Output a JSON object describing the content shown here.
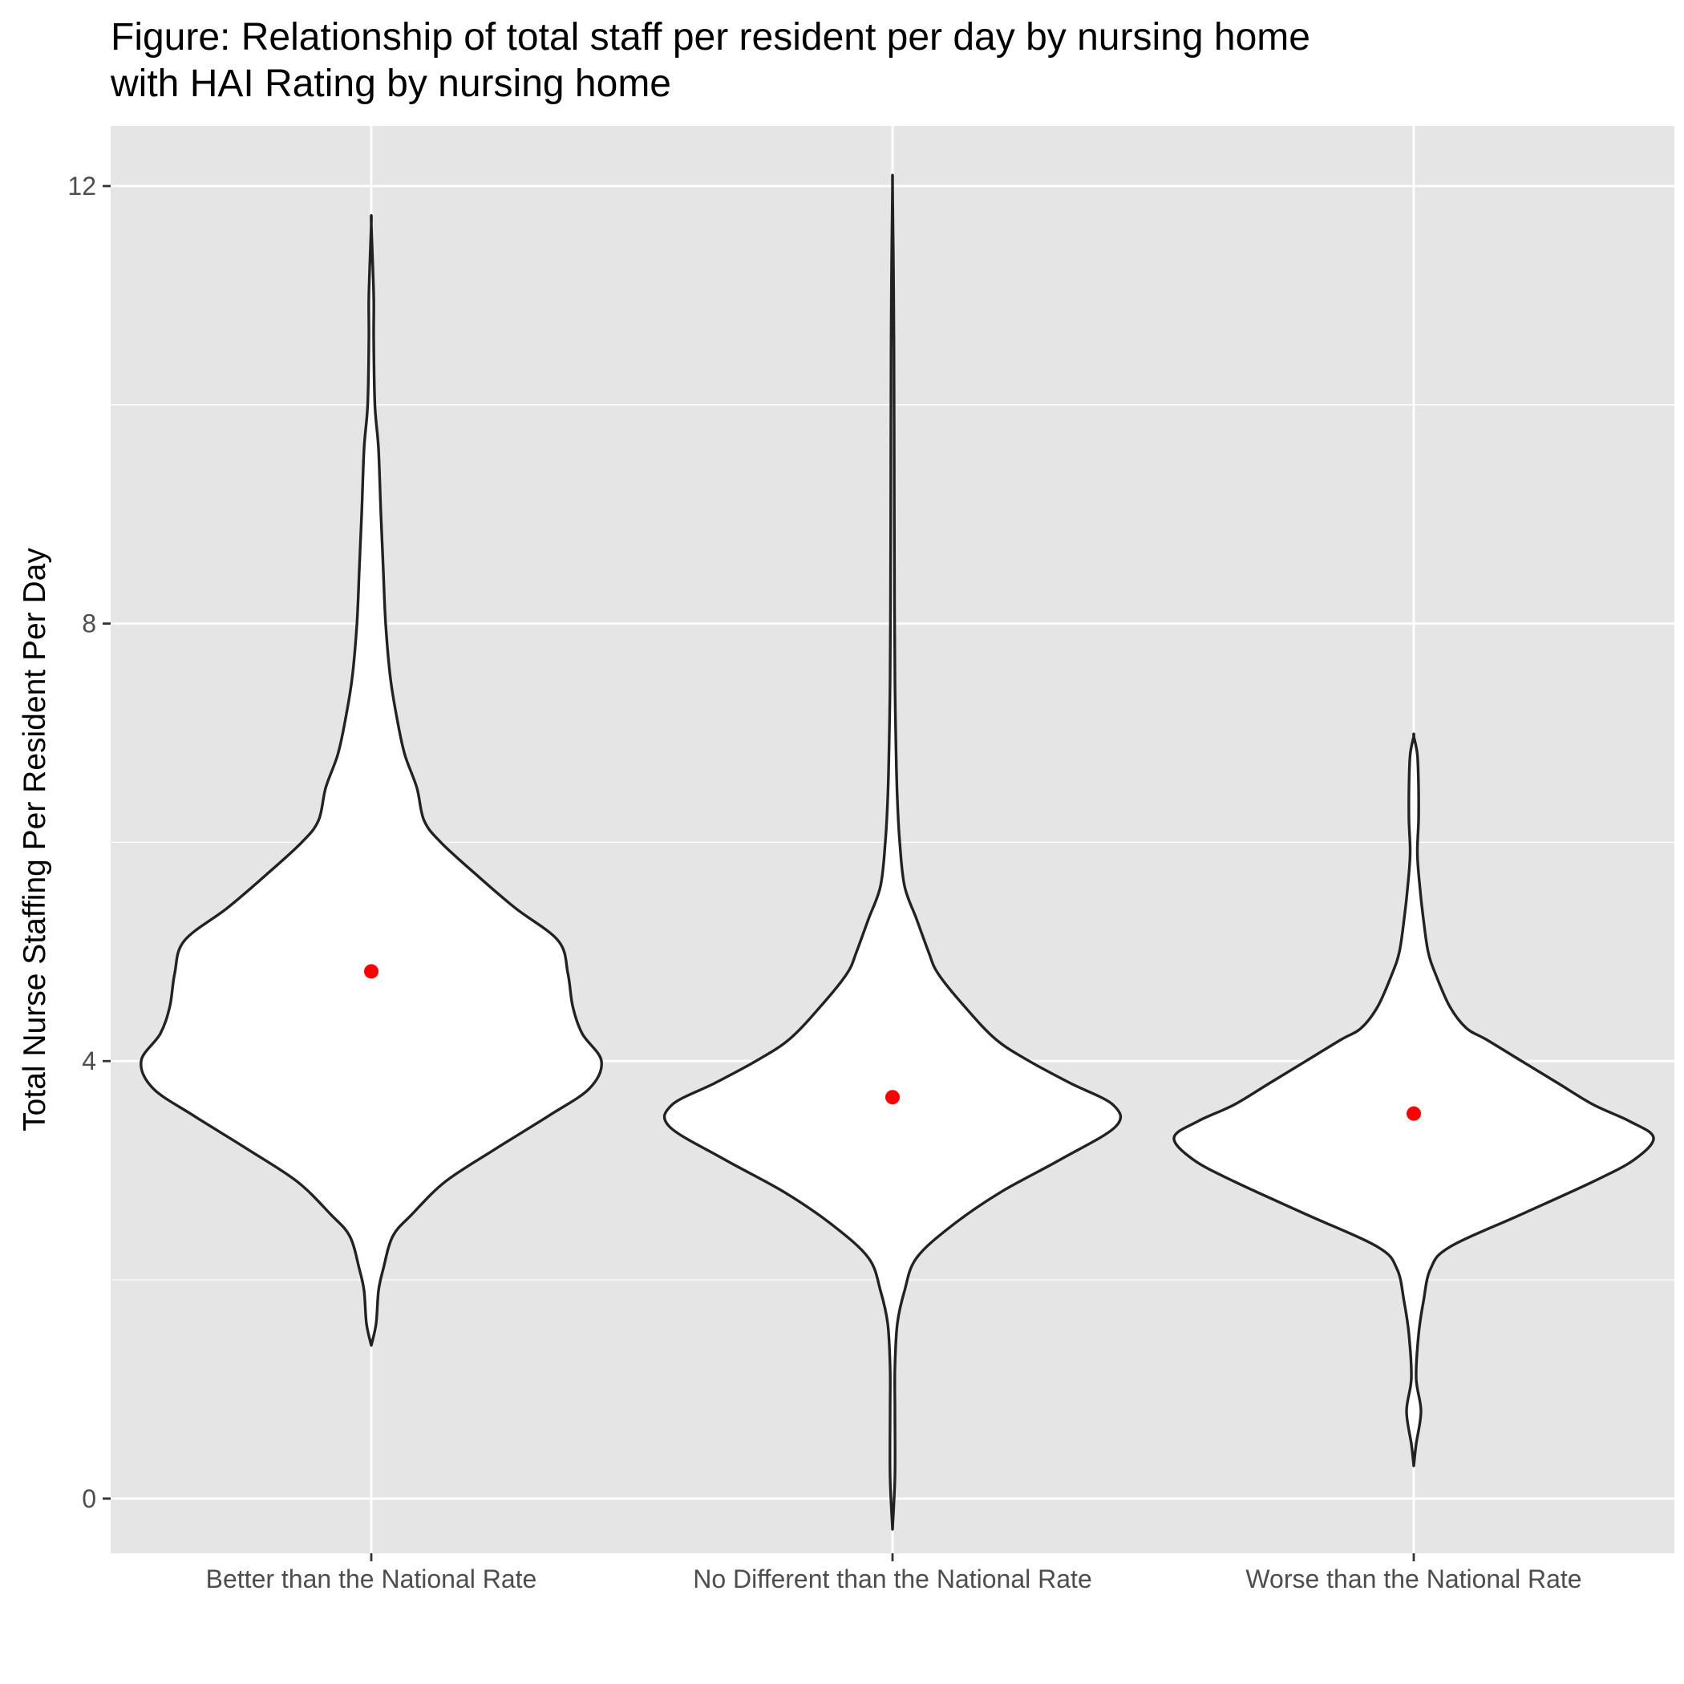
{
  "chart_data": {
    "type": "violin",
    "title_lines": [
      "Figure: Relationship of total staff per resident per day by nursing home",
      "with HAI Rating by nursing home"
    ],
    "xlabel": "",
    "ylabel": "Total Nurse Staffing Per Resident Per Day",
    "ylim": [
      -0.5,
      12.55
    ],
    "yticks": [
      0,
      4,
      8,
      12
    ],
    "y_minor_gridlines": [
      2,
      6,
      10
    ],
    "categories": [
      "Better than the National Rate",
      "No Different than the National Rate",
      "Worse than the National Rate"
    ],
    "series": [
      {
        "category": "Better than the National Rate",
        "mean": 4.82,
        "min": 1.4,
        "max": 11.65,
        "density_profile": [
          [
            1.4,
            0.0
          ],
          [
            1.6,
            0.02
          ],
          [
            1.9,
            0.03
          ],
          [
            2.1,
            0.05
          ],
          [
            2.4,
            0.09
          ],
          [
            2.6,
            0.17
          ],
          [
            2.9,
            0.31
          ],
          [
            3.2,
            0.52
          ],
          [
            3.5,
            0.74
          ],
          [
            3.75,
            0.91
          ],
          [
            4.0,
            0.96
          ],
          [
            4.25,
            0.88
          ],
          [
            4.5,
            0.84
          ],
          [
            4.8,
            0.82
          ],
          [
            5.1,
            0.78
          ],
          [
            5.4,
            0.6
          ],
          [
            5.7,
            0.44
          ],
          [
            6.0,
            0.29
          ],
          [
            6.2,
            0.22
          ],
          [
            6.5,
            0.19
          ],
          [
            6.8,
            0.14
          ],
          [
            7.1,
            0.11
          ],
          [
            7.5,
            0.08
          ],
          [
            8.0,
            0.06
          ],
          [
            8.5,
            0.05
          ],
          [
            9.0,
            0.04
          ],
          [
            9.6,
            0.03
          ],
          [
            10.0,
            0.015
          ],
          [
            10.6,
            0.01
          ],
          [
            11.0,
            0.01
          ],
          [
            11.65,
            0.0
          ]
        ]
      },
      {
        "category": "No Different than the National Rate",
        "mean": 3.67,
        "min": -0.28,
        "max": 12.0,
        "density_profile": [
          [
            -0.28,
            0.0
          ],
          [
            0.2,
            0.01
          ],
          [
            0.8,
            0.01
          ],
          [
            1.2,
            0.01
          ],
          [
            1.6,
            0.02
          ],
          [
            1.9,
            0.05
          ],
          [
            2.2,
            0.1
          ],
          [
            2.5,
            0.25
          ],
          [
            2.8,
            0.45
          ],
          [
            3.1,
            0.7
          ],
          [
            3.4,
            0.93
          ],
          [
            3.6,
            0.92
          ],
          [
            3.8,
            0.74
          ],
          [
            4.0,
            0.57
          ],
          [
            4.2,
            0.43
          ],
          [
            4.5,
            0.3
          ],
          [
            4.8,
            0.19
          ],
          [
            5.0,
            0.15
          ],
          [
            5.3,
            0.1
          ],
          [
            5.6,
            0.05
          ],
          [
            6.0,
            0.03
          ],
          [
            6.4,
            0.02
          ],
          [
            6.8,
            0.015
          ],
          [
            7.5,
            0.01
          ],
          [
            8.5,
            0.008
          ],
          [
            9.5,
            0.007
          ],
          [
            10.5,
            0.006
          ],
          [
            11.2,
            0.004
          ],
          [
            12.0,
            0.0
          ]
        ]
      },
      {
        "category": "Worse than the National Rate",
        "mean": 3.52,
        "min": 0.3,
        "max": 6.97,
        "density_profile": [
          [
            0.3,
            0.0
          ],
          [
            0.5,
            0.01
          ],
          [
            0.8,
            0.03
          ],
          [
            1.1,
            0.01
          ],
          [
            1.5,
            0.02
          ],
          [
            1.8,
            0.04
          ],
          [
            2.1,
            0.07
          ],
          [
            2.3,
            0.15
          ],
          [
            2.6,
            0.45
          ],
          [
            2.9,
            0.75
          ],
          [
            3.1,
            0.92
          ],
          [
            3.3,
            1.0
          ],
          [
            3.45,
            0.9
          ],
          [
            3.6,
            0.75
          ],
          [
            3.8,
            0.6
          ],
          [
            4.0,
            0.45
          ],
          [
            4.2,
            0.3
          ],
          [
            4.3,
            0.22
          ],
          [
            4.5,
            0.15
          ],
          [
            4.8,
            0.09
          ],
          [
            5.0,
            0.06
          ],
          [
            5.3,
            0.04
          ],
          [
            5.6,
            0.025
          ],
          [
            5.9,
            0.015
          ],
          [
            6.2,
            0.02
          ],
          [
            6.5,
            0.02
          ],
          [
            6.8,
            0.015
          ],
          [
            6.97,
            0.0
          ]
        ]
      }
    ],
    "mean_marker_color": "#ff0000",
    "violin_fill": "#ffffff",
    "violin_stroke": "#222222",
    "panel_background": "#e5e5e5",
    "grid_color": "#ffffff",
    "grid": true,
    "legend": "none"
  }
}
